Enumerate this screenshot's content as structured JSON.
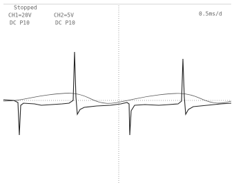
{
  "status": "Stopped",
  "channels": [
    {
      "scale": "CH1=20V",
      "coupling": "DC P10"
    },
    {
      "scale": "CH2=5V",
      "coupling": "DC P10"
    }
  ],
  "timebase": "0.5ms/d"
}
